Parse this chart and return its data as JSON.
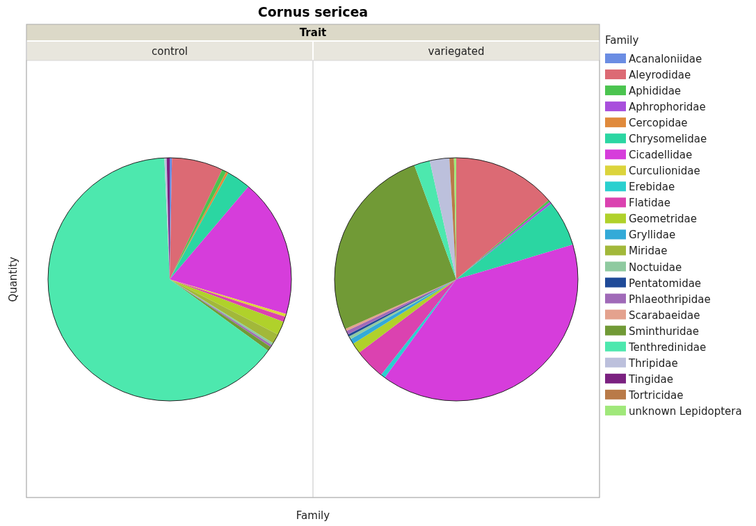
{
  "chart_data": {
    "type": "pie",
    "title": "Cornus sericea",
    "xlabel": "Family",
    "ylabel": "Quantity",
    "legend": "right",
    "legend_title": "Family",
    "annotations": [
      "Trait"
    ],
    "categories": [
      "Acanaloniidae",
      "Aleyrodidae",
      "Aphididae",
      "Aphrophoridae",
      "Cercopidae",
      "Chrysomelidae",
      "Cicadellidae",
      "Curculionidae",
      "Erebidae",
      "Flatidae",
      "Geometridae",
      "Gryllidae",
      "Miridae",
      "Noctuidae",
      "Pentatomidae",
      "Phlaeothripidae",
      "Scarabaeidae",
      "Sminthuridae",
      "Tenthredinidae",
      "Thripidae",
      "Tingidae",
      "Tortricidae",
      "unknown Lepidoptera"
    ],
    "colors": [
      "#6b8de3",
      "#dc6a74",
      "#4bc44f",
      "#a84fdc",
      "#e08a3c",
      "#2bd6a2",
      "#d63ddb",
      "#dcd43c",
      "#2ad0cf",
      "#db42b0",
      "#b0d12b",
      "#33aad8",
      "#a2b83a",
      "#8fcaa0",
      "#1f4a98",
      "#a06ab8",
      "#e4a28e",
      "#719a36",
      "#4de8ae",
      "#bcc0dc",
      "#7b2180",
      "#b97a48",
      "#a0e87a"
    ],
    "series": [
      {
        "name": "control",
        "values": [
          0.3,
          6.8,
          0.6,
          0,
          0.3,
          3.2,
          18.4,
          0.4,
          0,
          0.7,
          1.8,
          0,
          1.3,
          0.3,
          0,
          0.3,
          0,
          0.6,
          64.3,
          0.3,
          0.4,
          0,
          0
        ]
      },
      {
        "name": "variegated",
        "values": [
          0,
          13.7,
          0.3,
          0.3,
          0,
          6.1,
          39.6,
          0,
          0.6,
          4.1,
          1.4,
          0.7,
          0,
          0.4,
          0.3,
          0.5,
          0.3,
          26.1,
          2.1,
          2.6,
          0,
          0.6,
          0.3
        ]
      }
    ]
  }
}
